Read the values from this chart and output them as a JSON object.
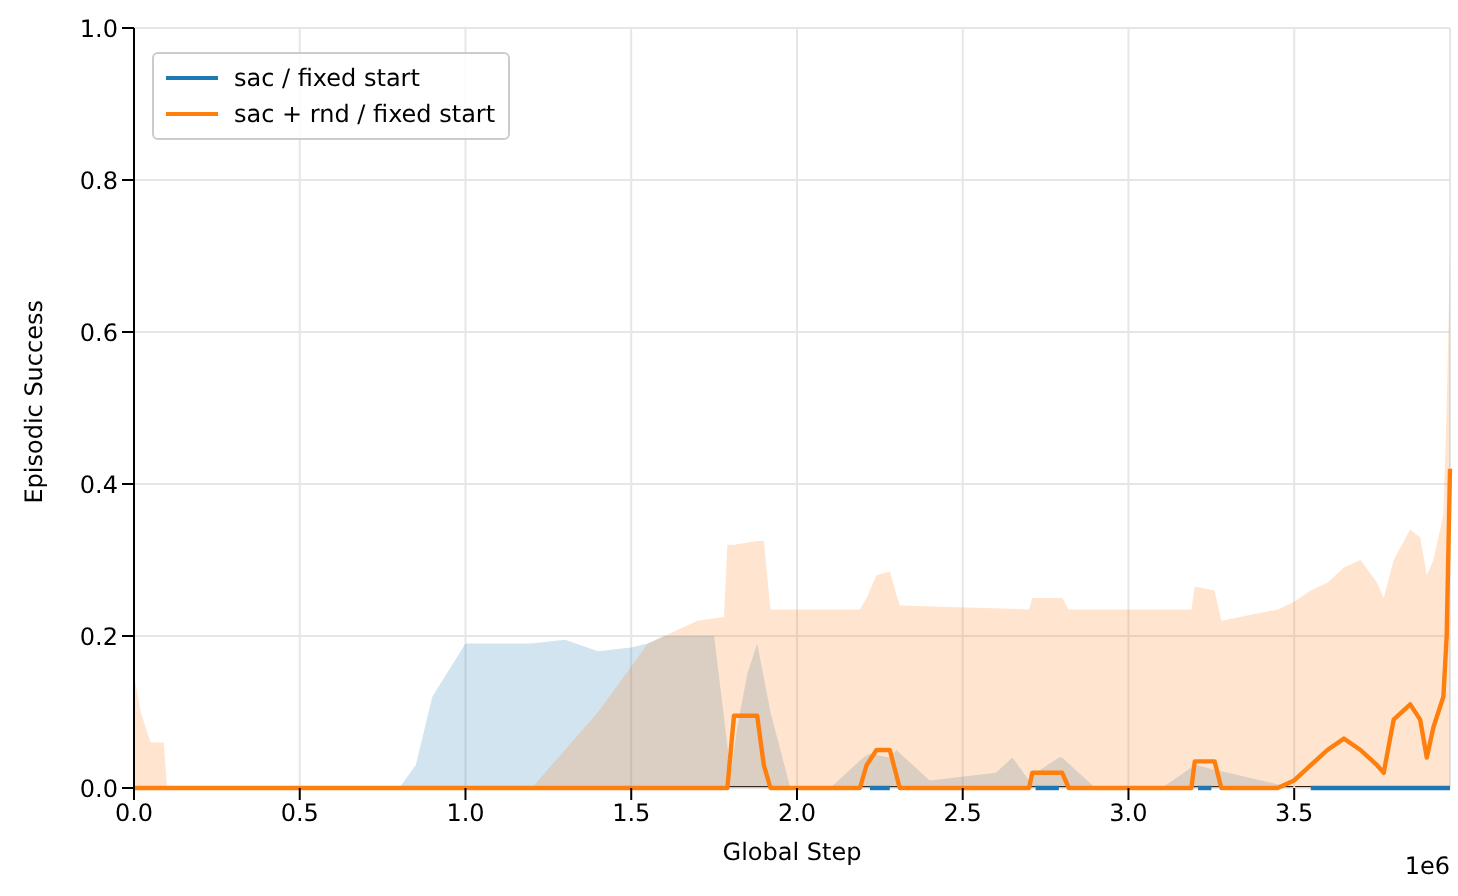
{
  "chart_data": {
    "type": "line",
    "xlabel": "Global Step",
    "ylabel": "Episodic Success",
    "annotations": [
      "1e6"
    ],
    "xlim": [
      0,
      3.97
    ],
    "xticks": [
      {
        "value": 0,
        "label": "0.0"
      },
      {
        "value": 0.5,
        "label": "0.5"
      },
      {
        "value": 1,
        "label": "1.0"
      },
      {
        "value": 1.5,
        "label": "1.5"
      },
      {
        "value": 2,
        "label": "2.0"
      },
      {
        "value": 2.5,
        "label": "2.5"
      },
      {
        "value": 3,
        "label": "3.0"
      },
      {
        "value": 3.5,
        "label": "3.5"
      }
    ],
    "ylim": [
      0,
      1
    ],
    "yticks": [
      {
        "value": 0,
        "label": "0.0"
      },
      {
        "value": 0.2,
        "label": "0.2"
      },
      {
        "value": 0.4,
        "label": "0.4"
      },
      {
        "value": 0.6,
        "label": "0.6"
      },
      {
        "value": 0.8,
        "label": "0.8"
      },
      {
        "value": 1,
        "label": "1.0"
      }
    ],
    "grid": true,
    "legend": "top left",
    "series": [
      {
        "name": "sac / fixed start",
        "color": "#1f77b4",
        "x": [
          0,
          0.8,
          0.85,
          0.9,
          1.0,
          1.1,
          1.2,
          1.3,
          1.4,
          1.5,
          1.55,
          1.6,
          1.75,
          1.8,
          1.82,
          1.85,
          1.88,
          1.92,
          1.98,
          2.1,
          2.2,
          2.22,
          2.28,
          2.3,
          2.4,
          2.6,
          2.65,
          2.7,
          2.72,
          2.79,
          2.8,
          2.9,
          3.1,
          3.2,
          3.21,
          3.25,
          3.3,
          3.5,
          3.55,
          3.97
        ],
        "values": [
          null,
          null,
          null,
          null,
          null,
          null,
          null,
          null,
          null,
          null,
          null,
          null,
          null,
          null,
          null,
          null,
          null,
          null,
          null,
          null,
          null,
          0,
          0,
          null,
          null,
          null,
          null,
          null,
          0,
          0,
          null,
          null,
          null,
          null,
          0,
          0,
          null,
          null,
          0,
          0
        ],
        "lower": [
          0,
          0,
          0,
          0,
          0,
          0,
          0,
          0,
          0,
          0,
          0,
          0,
          0,
          0,
          0,
          0,
          0,
          0,
          0,
          0,
          0,
          0,
          0,
          0,
          0,
          0,
          0,
          0,
          0,
          0,
          0,
          0,
          0,
          0,
          0,
          0,
          0,
          0,
          0,
          0
        ],
        "upper": [
          0,
          0,
          0.03,
          0.12,
          0.19,
          0.19,
          0.19,
          0.195,
          0.18,
          0.185,
          0.19,
          0.2,
          0.2,
          0.02,
          0.08,
          0.15,
          0.19,
          0.1,
          0,
          0,
          0.04,
          0.045,
          0.04,
          0.05,
          0.01,
          0.02,
          0.04,
          0.01,
          0.02,
          0.04,
          0.04,
          0,
          0,
          0.03,
          0.03,
          0.025,
          0.02,
          0,
          0,
          0
        ]
      },
      {
        "name": "sac + rnd / fixed start",
        "color": "#ff7f0e",
        "x": [
          0,
          0.02,
          0.05,
          0.09,
          0.1,
          1.2,
          1.3,
          1.4,
          1.5,
          1.55,
          1.6,
          1.7,
          1.78,
          1.79,
          1.81,
          1.88,
          1.9,
          1.92,
          2.19,
          2.21,
          2.24,
          2.28,
          2.31,
          2.7,
          2.71,
          2.8,
          2.82,
          3.19,
          3.2,
          3.26,
          3.28,
          3.45,
          3.5,
          3.55,
          3.6,
          3.65,
          3.7,
          3.75,
          3.77,
          3.8,
          3.85,
          3.88,
          3.9,
          3.92,
          3.95,
          3.96,
          3.97
        ],
        "values": [
          0,
          0,
          0,
          0,
          0,
          0,
          0,
          0,
          0,
          0,
          0,
          0,
          0,
          0,
          0.095,
          0.095,
          0.03,
          0,
          0,
          0.03,
          0.05,
          0.05,
          0,
          0,
          0.02,
          0.02,
          0,
          0,
          0.035,
          0.035,
          0,
          0,
          0.01,
          0.03,
          0.05,
          0.065,
          0.05,
          0.03,
          0.02,
          0.09,
          0.11,
          0.09,
          0.04,
          0.08,
          0.12,
          0.2,
          0.42
        ],
        "lower": [
          0,
          0,
          0,
          0,
          0,
          0,
          0,
          0,
          0,
          0,
          0,
          0,
          0,
          0,
          0,
          0,
          0,
          0,
          0,
          0,
          0,
          0,
          0,
          0,
          0,
          0,
          0,
          0,
          0,
          0,
          0,
          0,
          0,
          0,
          0,
          0,
          0,
          0,
          0,
          0,
          0,
          0,
          0,
          0,
          0,
          0,
          0
        ],
        "upper": [
          0.15,
          0.1,
          0.06,
          0.06,
          0,
          0,
          0.05,
          0.1,
          0.16,
          0.19,
          0.2,
          0.22,
          0.225,
          0.32,
          0.32,
          0.325,
          0.325,
          0.235,
          0.235,
          0.25,
          0.28,
          0.285,
          0.24,
          0.235,
          0.25,
          0.25,
          0.235,
          0.235,
          0.265,
          0.26,
          0.22,
          0.235,
          0.245,
          0.26,
          0.27,
          0.29,
          0.3,
          0.27,
          0.25,
          0.3,
          0.34,
          0.33,
          0.28,
          0.3,
          0.36,
          0.5,
          0.7
        ]
      }
    ]
  }
}
